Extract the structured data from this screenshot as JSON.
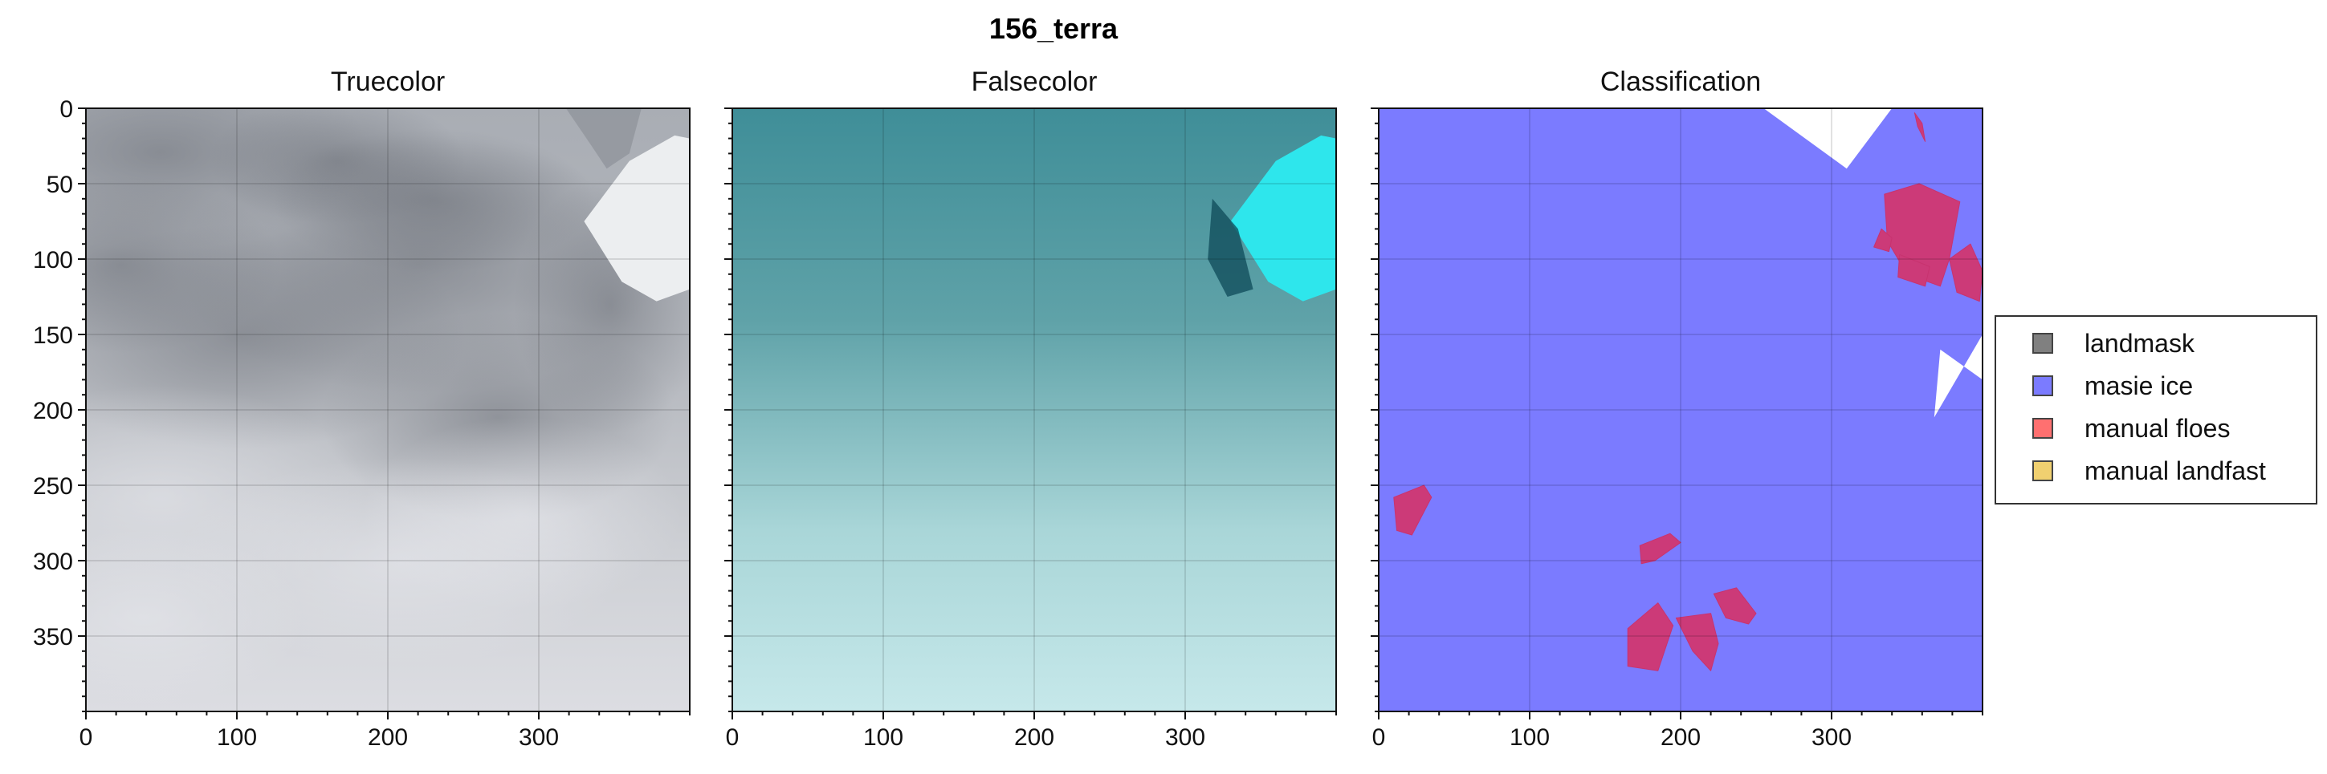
{
  "chart_data": {
    "type": "image",
    "title": "156_terra",
    "panels": [
      {
        "title": "Truecolor",
        "xlim": [
          0,
          400
        ],
        "ylim": [
          400,
          0
        ],
        "xticks": [
          0,
          100,
          200,
          300
        ],
        "yticks": [
          0,
          50,
          100,
          150,
          200,
          250,
          300,
          350
        ],
        "grid": true
      },
      {
        "title": "Falsecolor",
        "xlim": [
          0,
          400
        ],
        "ylim": [
          400,
          0
        ],
        "xticks": [
          0,
          100,
          200,
          300
        ],
        "yticks": [
          0,
          50,
          100,
          150,
          200,
          250,
          300,
          350
        ],
        "grid": true
      },
      {
        "title": "Classification",
        "xlim": [
          0,
          400
        ],
        "ylim": [
          400,
          0
        ],
        "xticks": [
          0,
          100,
          200,
          300
        ],
        "yticks": [
          0,
          50,
          100,
          150,
          200,
          250,
          300,
          350
        ],
        "grid": true,
        "masie_ice_gaps": [
          {
            "x": [
              255,
              310,
              340
            ],
            "y": [
              0,
              40,
              0
            ]
          },
          {
            "x": [
              372,
              400,
              400,
              368
            ],
            "y": [
              160,
              180,
              150,
              205
            ]
          }
        ],
        "manual_floes": [
          {
            "x": [
              355,
              360,
              362,
              357
            ],
            "y": [
              3,
              10,
              22,
              12
            ]
          },
          {
            "x": [
              335,
              358,
              385,
              378,
              372,
              350,
              337
            ],
            "y": [
              57,
              50,
              62,
              100,
              118,
              110,
              88
            ]
          },
          {
            "x": [
              333,
              340,
              338,
              328
            ],
            "y": [
              80,
              86,
              95,
              92
            ]
          },
          {
            "x": [
              345,
              365,
              362,
              344
            ],
            "y": [
              97,
              105,
              118,
              112
            ]
          },
          {
            "x": [
              378,
              392,
              400,
              398,
              383
            ],
            "y": [
              100,
              90,
              108,
              128,
              122
            ]
          },
          {
            "x": [
              10,
              30,
              35,
              22,
              12
            ],
            "y": [
              258,
              250,
              258,
              283,
              280
            ]
          },
          {
            "x": [
              173,
              193,
              200,
              183,
              174
            ],
            "y": [
              290,
              282,
              288,
              300,
              302
            ]
          },
          {
            "x": [
              165,
              185,
              195,
              185,
              165
            ],
            "y": [
              345,
              328,
              343,
              373,
              370
            ]
          },
          {
            "x": [
              197,
              220,
              225,
              220,
              208
            ],
            "y": [
              338,
              335,
              355,
              373,
              360
            ]
          },
          {
            "x": [
              222,
              237,
              250,
              245,
              230
            ],
            "y": [
              322,
              318,
              335,
              342,
              338
            ]
          }
        ]
      }
    ],
    "legend": {
      "placement": "right",
      "entries": [
        {
          "label": "landmask",
          "color": "#808080"
        },
        {
          "label": "masie ice",
          "color": "#7b7bff"
        },
        {
          "label": "manual floes",
          "color": "#ff7070"
        },
        {
          "label": "manual landfast",
          "color": "#f0d070"
        }
      ]
    }
  }
}
